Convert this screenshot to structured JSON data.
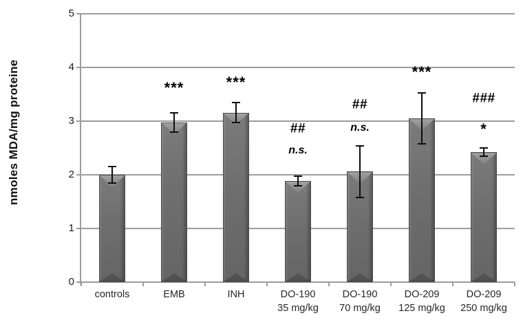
{
  "chart_data": {
    "type": "bar",
    "title": "",
    "ylabel": "nmoles MDA/mg proteine",
    "xlabel": "",
    "ylim": [
      0,
      5
    ],
    "yticks": [
      "0",
      "1",
      "2",
      "3",
      "4",
      "5"
    ],
    "grid": "horizontal gridlines at each integer",
    "legend": "none",
    "colors": {
      "bar_fill": "#6e6e6e",
      "bar_border": "#4c4c4c",
      "bar_bevel_light": "#a2a2a2",
      "gridline": "#9c9c9c",
      "error_bar": "#0d0d0d",
      "tick_text": "#1a1a1a",
      "label_text": "#262626"
    },
    "categories": [
      {
        "lines": [
          "controls"
        ]
      },
      {
        "lines": [
          "EMB"
        ]
      },
      {
        "lines": [
          "INH"
        ]
      },
      {
        "lines": [
          "DO-190",
          "35 mg/kg"
        ]
      },
      {
        "lines": [
          "DO-190",
          "70 mg/kg"
        ]
      },
      {
        "lines": [
          "DO-209",
          "125 mg/kg"
        ]
      },
      {
        "lines": [
          "DO-209",
          "250 mg/kg"
        ]
      }
    ],
    "series": [
      {
        "name": "MDA",
        "values": [
          2.0,
          2.98,
          3.16,
          1.89,
          2.06,
          3.05,
          2.42
        ],
        "errors": [
          0.15,
          0.18,
          0.18,
          0.09,
          0.48,
          0.47,
          0.08
        ]
      }
    ],
    "annotations": [
      [],
      [
        {
          "text": "***",
          "y": 3.62,
          "kind": "stars"
        }
      ],
      [
        {
          "text": "***",
          "y": 3.72,
          "kind": "stars"
        }
      ],
      [
        {
          "text": "##",
          "y": 2.86,
          "kind": "hash"
        },
        {
          "text": "n.s.",
          "y": 2.45,
          "kind": "ns"
        }
      ],
      [
        {
          "text": "##",
          "y": 3.31,
          "kind": "hash"
        },
        {
          "text": "n.s.",
          "y": 2.87,
          "kind": "ns"
        }
      ],
      [
        {
          "text": "***",
          "y": 3.91,
          "kind": "stars"
        }
      ],
      [
        {
          "text": "###",
          "y": 3.42,
          "kind": "hash"
        },
        {
          "text": "*",
          "y": 2.85,
          "kind": "stars"
        }
      ]
    ]
  }
}
